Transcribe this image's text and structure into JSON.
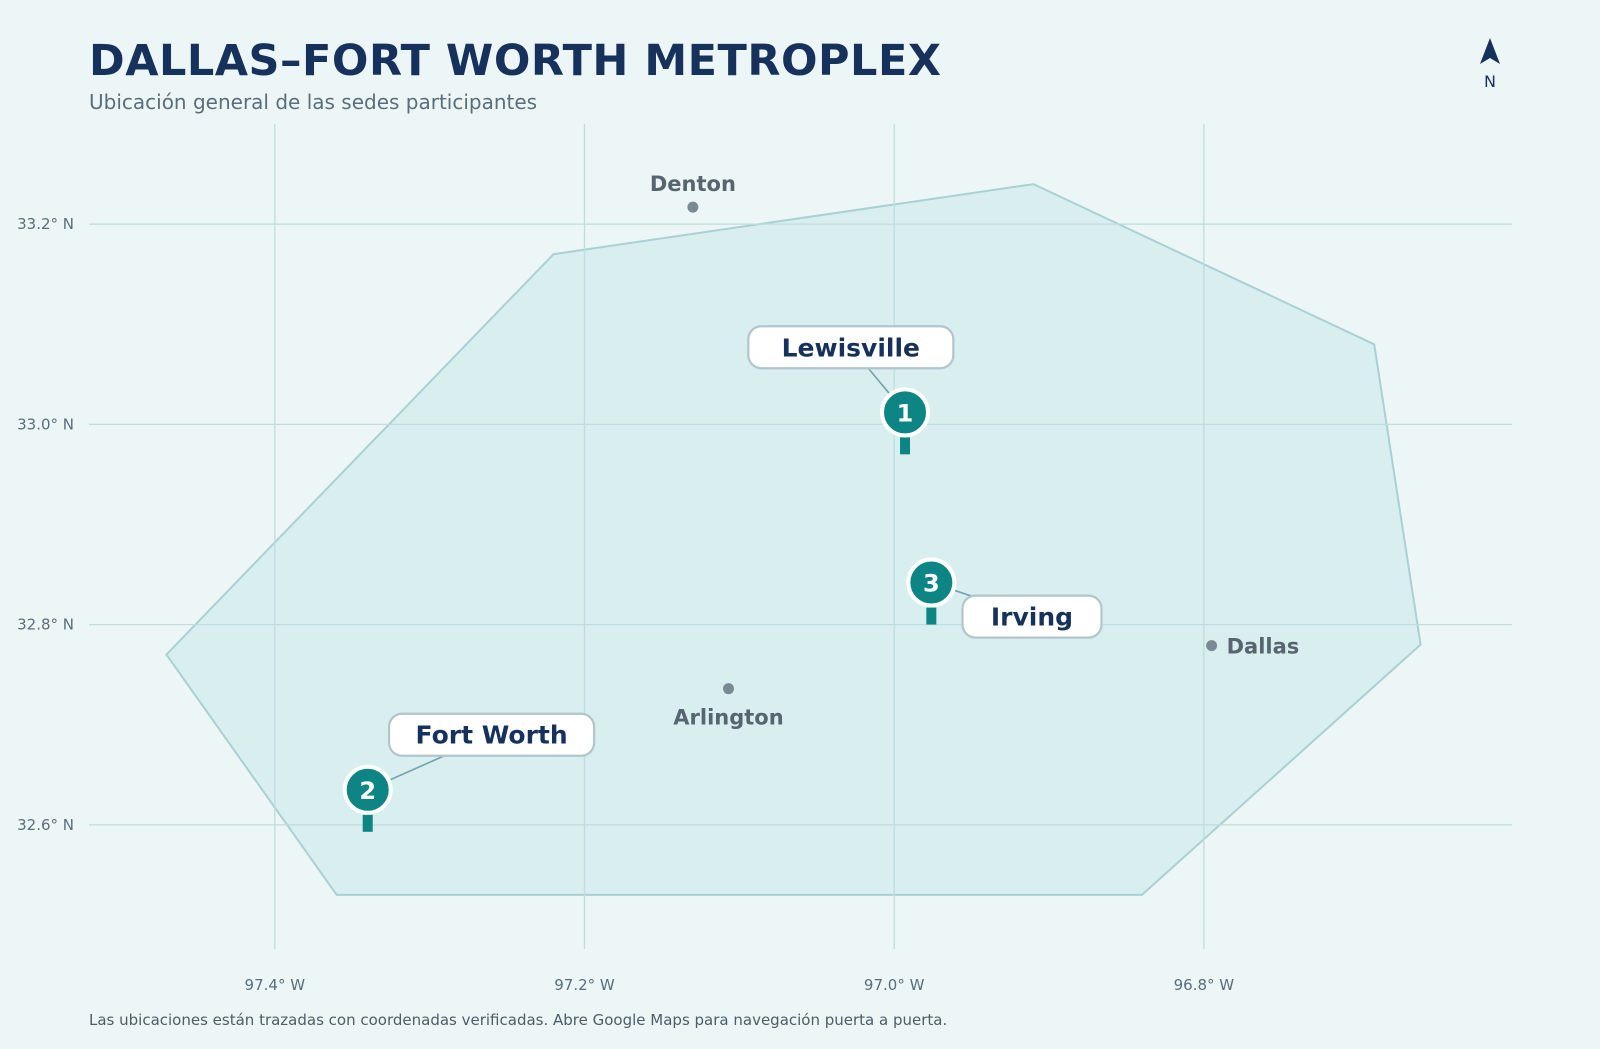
{
  "header": {
    "title": "DALLAS–FORT WORTH METROPLEX",
    "subtitle": "Ubicación general de las sedes participantes"
  },
  "compass": {
    "label": "N",
    "icon": "north-arrow-icon"
  },
  "footnote": "Las ubicaciones están trazadas con coordenadas verificadas. Abre Google Maps para navegación puerta a puerta.",
  "map": {
    "x_ticks": [
      {
        "value": -97.4,
        "label": "97.4° W"
      },
      {
        "value": -97.2,
        "label": "97.2° W"
      },
      {
        "value": -97.0,
        "label": "97.0° W"
      },
      {
        "value": -96.8,
        "label": "96.8° W"
      }
    ],
    "y_ticks": [
      {
        "value": 33.2,
        "label": "33.2° N"
      },
      {
        "value": 33.0,
        "label": "33.0° N"
      },
      {
        "value": 32.8,
        "label": "32.8° N"
      },
      {
        "value": 32.6,
        "label": "32.6° N"
      }
    ],
    "region_polygon": [
      [
        -97.47,
        32.77
      ],
      [
        -97.22,
        33.17
      ],
      [
        -96.91,
        33.24
      ],
      [
        -96.69,
        33.08
      ],
      [
        -96.66,
        32.78
      ],
      [
        -96.84,
        32.53
      ],
      [
        -97.36,
        32.53
      ]
    ],
    "cities": [
      {
        "name": "Denton",
        "lon": -97.13,
        "lat": 33.217,
        "label_pos": "above"
      },
      {
        "name": "Arlington",
        "lon": -97.107,
        "lat": 32.736,
        "label_pos": "below"
      },
      {
        "name": "Dallas",
        "lon": -96.795,
        "lat": 32.779,
        "label_pos": "right"
      }
    ],
    "venues": [
      {
        "number": "1",
        "name": "Lewisville",
        "lon": -96.993,
        "lat": 33.012,
        "label_lon": -97.028,
        "label_lat": 33.077
      },
      {
        "number": "2",
        "name": "Fort Worth",
        "lon": -97.34,
        "lat": 32.635,
        "label_lon": -97.26,
        "label_lat": 32.69
      },
      {
        "number": "3",
        "name": "Irving",
        "lon": -96.976,
        "lat": 32.842,
        "label_lon": -96.911,
        "label_lat": 32.808
      }
    ],
    "colors": {
      "region_fill": "#d9eeee",
      "region_stroke": "#a9d1d3",
      "grid": "#c0dcdc",
      "marker": "#0d8584",
      "city_dot": "#7a8a94",
      "leader": "#6fa4ab",
      "label_border": "#b2c5cd"
    }
  }
}
